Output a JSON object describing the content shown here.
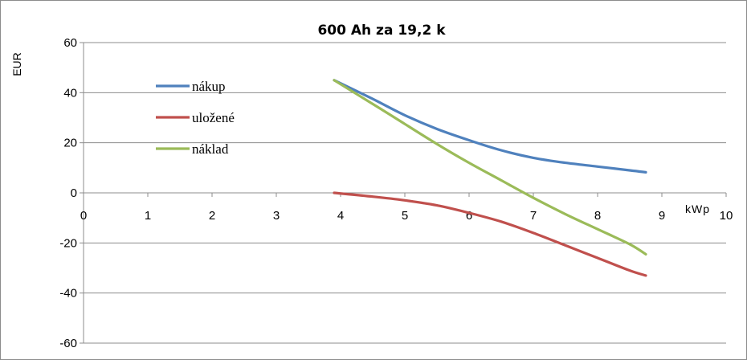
{
  "chart_data": {
    "type": "line",
    "title": "600 Ah za 19,2 k",
    "xlabel": "kWp",
    "ylabel": "EUR",
    "xlim": [
      0,
      10
    ],
    "ylim": [
      -60,
      60
    ],
    "x_ticks": [
      "0",
      "1",
      "2",
      "3",
      "4",
      "5",
      "6",
      "7",
      "8",
      "9",
      "10"
    ],
    "y_ticks": [
      "60",
      "40",
      "20",
      "0",
      "-20",
      "-40",
      "-60"
    ],
    "grid": "horizontal",
    "legend_position": "left",
    "series": [
      {
        "name": "nákup",
        "color": "#4f81bd",
        "points": [
          [
            3.9,
            45
          ],
          [
            4.5,
            37.5
          ],
          [
            5.0,
            31
          ],
          [
            5.5,
            25.5
          ],
          [
            6.0,
            21
          ],
          [
            6.5,
            17
          ],
          [
            7.0,
            14
          ],
          [
            7.5,
            12
          ],
          [
            8.0,
            10.5
          ],
          [
            8.5,
            9
          ],
          [
            8.75,
            8.2
          ]
        ]
      },
      {
        "name": "uložené",
        "color": "#c0504d",
        "points": [
          [
            3.9,
            0
          ],
          [
            4.5,
            -1.5
          ],
          [
            5.0,
            -3
          ],
          [
            5.5,
            -5
          ],
          [
            6.0,
            -8
          ],
          [
            6.5,
            -11.5
          ],
          [
            7.0,
            -16
          ],
          [
            7.5,
            -21
          ],
          [
            8.0,
            -26
          ],
          [
            8.5,
            -31
          ],
          [
            8.75,
            -33
          ]
        ]
      },
      {
        "name": "náklad",
        "color": "#9bbb59",
        "points": [
          [
            3.9,
            45
          ],
          [
            4.5,
            35.5
          ],
          [
            5.0,
            27.5
          ],
          [
            5.5,
            19.5
          ],
          [
            6.0,
            12
          ],
          [
            6.5,
            5
          ],
          [
            7.0,
            -2
          ],
          [
            7.5,
            -8.5
          ],
          [
            8.0,
            -14.5
          ],
          [
            8.5,
            -20.5
          ],
          [
            8.75,
            -24.5
          ]
        ]
      }
    ]
  }
}
